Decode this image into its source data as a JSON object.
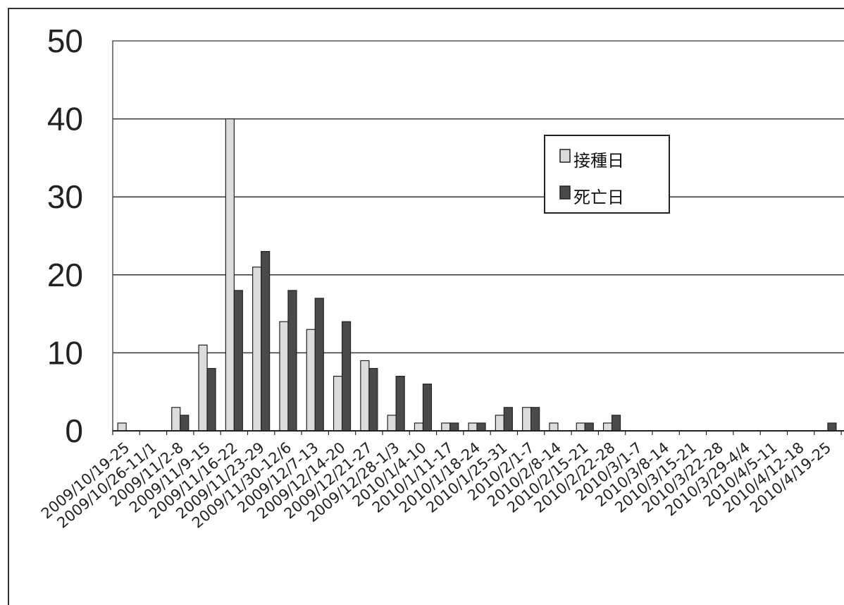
{
  "chart_data": {
    "type": "bar",
    "ylim": [
      0,
      50
    ],
    "yticks": [
      "0",
      "10",
      "20",
      "30",
      "40",
      "50"
    ],
    "categories": [
      "2009/10/19-25",
      "2009/10/26-11/1",
      "2009/11/2-8",
      "2009/11/9-15",
      "2009/11/16-22",
      "2009/11/23-29",
      "2009/11/30-12/6",
      "2009/12/7-13",
      "2009/12/14-20",
      "2009/12/21-27",
      "2009/12/28-1/3",
      "2010/1/4-10",
      "2010/1/11-17",
      "2010/1/18-24",
      "2010/1/25-31",
      "2010/2/1-7",
      "2010/2/8-14",
      "2010/2/15-21",
      "2010/2/22-28",
      "2010/3/1-7",
      "2010/3/8-14",
      "2010/3/15-21",
      "2010/3/22-28",
      "2010/3/29-4/4",
      "2010/4/5-11",
      "2010/4/12-18",
      "2010/4/19-25"
    ],
    "series": [
      {
        "name": "接種日",
        "color": "#dcdcdc",
        "values": [
          1,
          0,
          3,
          11,
          40,
          21,
          14,
          13,
          7,
          9,
          2,
          1,
          1,
          1,
          2,
          3,
          1,
          1,
          1,
          0,
          0,
          0,
          0,
          0,
          0,
          0,
          0
        ]
      },
      {
        "name": "死亡日",
        "color": "#4a4a4a",
        "values": [
          0,
          0,
          2,
          8,
          18,
          23,
          18,
          17,
          14,
          8,
          7,
          6,
          1,
          1,
          3,
          3,
          0,
          1,
          2,
          0,
          0,
          0,
          0,
          0,
          0,
          0,
          1
        ]
      }
    ],
    "legend_position": "top-right",
    "grid": true
  }
}
